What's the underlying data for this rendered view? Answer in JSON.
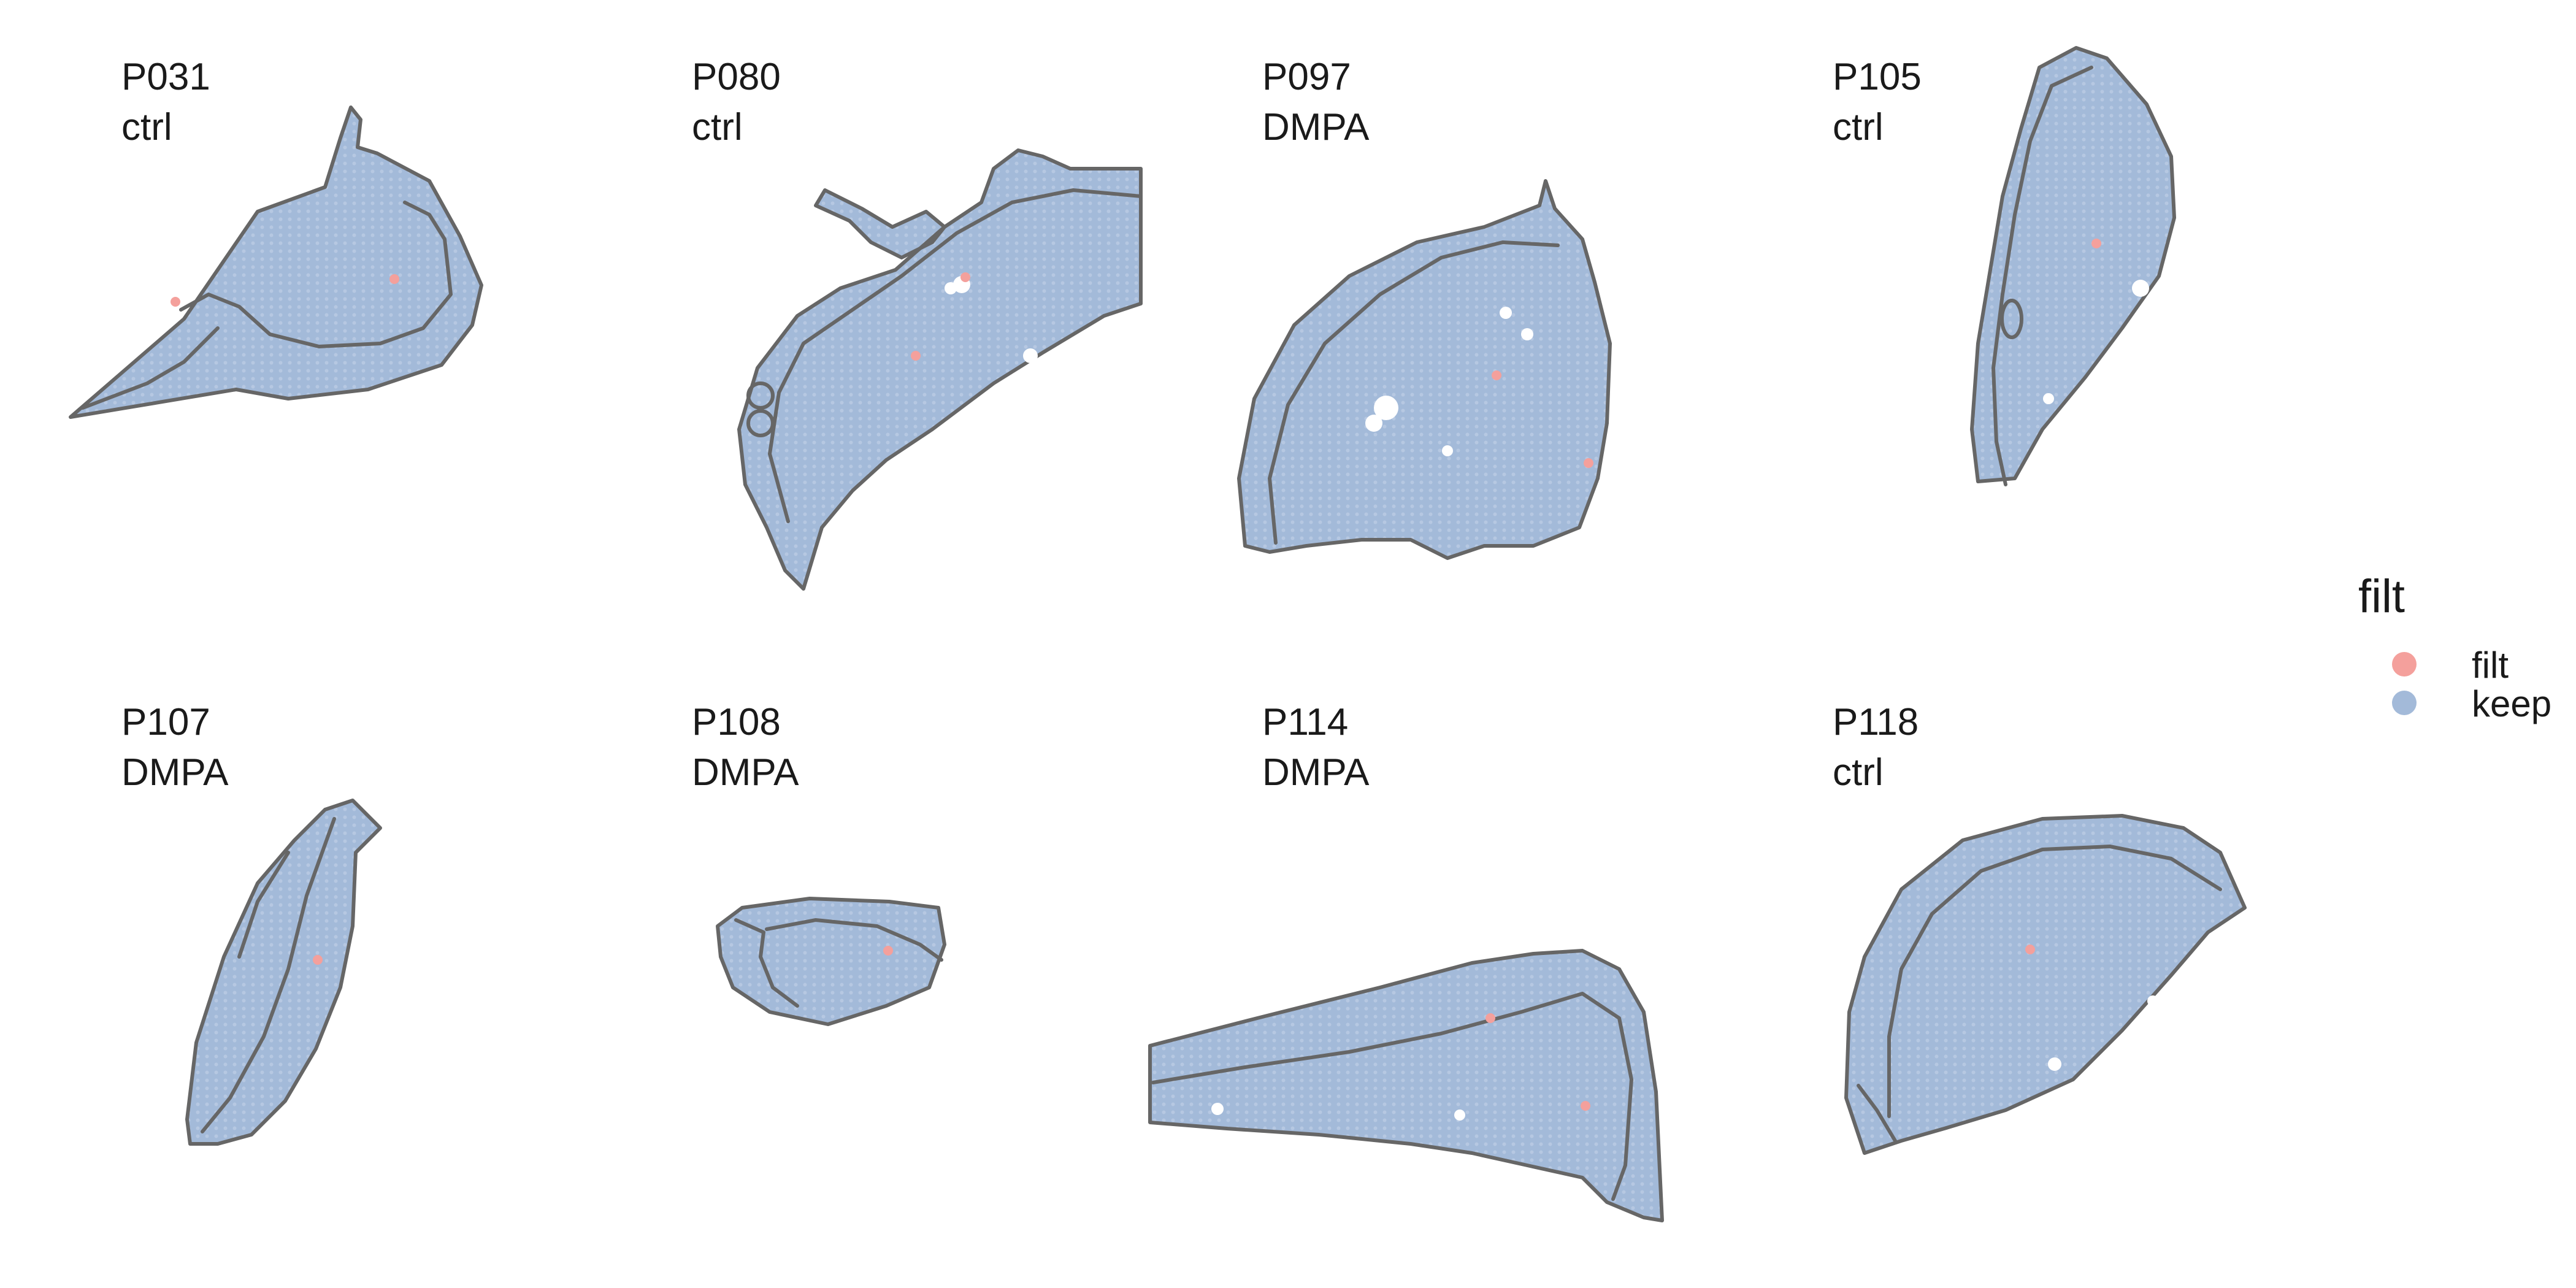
{
  "legend": {
    "title": "filt",
    "items": [
      {
        "label": "filt",
        "color": "#F4A09C"
      },
      {
        "label": "keep",
        "color": "#A3BAD9"
      }
    ]
  },
  "colors": {
    "filt": "#F4A09C",
    "keep": "#A3BAD9",
    "outline": "#666666",
    "hole": "#ffffff"
  },
  "panels": [
    {
      "id": "P031",
      "group": "ctrl"
    },
    {
      "id": "P080",
      "group": "ctrl"
    },
    {
      "id": "P097",
      "group": "DMPA"
    },
    {
      "id": "P105",
      "group": "ctrl"
    },
    {
      "id": "P107",
      "group": "DMPA"
    },
    {
      "id": "P108",
      "group": "DMPA"
    },
    {
      "id": "P114",
      "group": "DMPA"
    },
    {
      "id": "P118",
      "group": "ctrl"
    }
  ]
}
